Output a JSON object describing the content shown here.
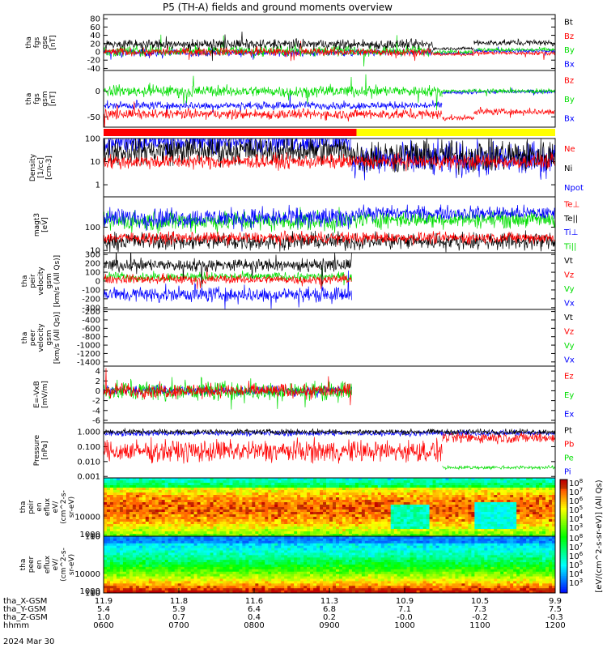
{
  "title": "P5 (TH-A) fields and ground moments overview",
  "date_label": "2024 Mar 30",
  "colors": {
    "black": "#000000",
    "red": "#ff0000",
    "green": "#00dd00",
    "blue": "#0000ff",
    "flag_red": "#ff0000",
    "flag_yellow": "#ffff00"
  },
  "chart_data": [
    {
      "id": "fgs_gse",
      "type": "line",
      "ylabel": [
        "tha",
        "fgs",
        "gse",
        "[nT]"
      ],
      "yticks": [
        "80",
        "60",
        "40",
        "20",
        "0",
        "-20",
        "-40"
      ],
      "ylim": [
        -45,
        90
      ],
      "series": [
        {
          "name": "Bt",
          "color": "black",
          "segments": [
            [
              0,
              0.73,
              18,
              10
            ],
            [
              0.73,
              0.82,
              8,
              3
            ],
            [
              0.82,
              1.0,
              22,
              6
            ]
          ]
        },
        {
          "name": "Bz",
          "color": "red",
          "segments": [
            [
              0,
              0.73,
              0,
              8
            ],
            [
              0.73,
              0.82,
              -6,
              3
            ],
            [
              0.82,
              1.0,
              -3,
              4
            ]
          ]
        },
        {
          "name": "By",
          "color": "green",
          "segments": [
            [
              0,
              0.73,
              2,
              10
            ],
            [
              0.73,
              0.82,
              0,
              4
            ],
            [
              0.82,
              1.0,
              5,
              4
            ]
          ]
        },
        {
          "name": "Bx",
          "color": "blue",
          "segments": [
            [
              0,
              0.73,
              -2,
              7
            ],
            [
              0.73,
              0.82,
              -4,
              3
            ],
            [
              0.82,
              1.0,
              2,
              4
            ]
          ]
        }
      ]
    },
    {
      "id": "fgs_gsm",
      "type": "line",
      "ylabel": [
        "tha",
        "fgs",
        "gsm",
        "[nT]"
      ],
      "yticks": [
        "0",
        "-50"
      ],
      "ylim": [
        -70,
        40
      ],
      "series": [
        {
          "name": "Bz",
          "color": "red",
          "segments": [
            [
              0,
              0.75,
              -45,
              8
            ],
            [
              0.75,
              0.82,
              -52,
              4
            ],
            [
              0.82,
              1.0,
              -40,
              5
            ]
          ]
        },
        {
          "name": "By",
          "color": "green",
          "segments": [
            [
              0,
              0.75,
              0,
              9
            ],
            [
              0.75,
              0.82,
              0,
              3
            ],
            [
              0.82,
              1.0,
              0,
              4
            ]
          ]
        },
        {
          "name": "Bx",
          "color": "blue",
          "segments": [
            [
              0,
              0.75,
              -28,
              6
            ],
            [
              0.75,
              0.82,
              -3,
              3
            ],
            [
              0.82,
              1.0,
              -1,
              3
            ]
          ]
        }
      ]
    },
    {
      "id": "density",
      "type": "line",
      "log": true,
      "ylabel": [
        "Density",
        "[1/cc]",
        "[cm-3]"
      ],
      "yticks": [
        "100",
        "10",
        "1"
      ],
      "ylim": [
        0.3,
        100
      ],
      "series": [
        {
          "name": "Ne",
          "color": "red",
          "segments": [
            [
              0,
              1.0,
              10,
              0.25
            ]
          ]
        },
        {
          "name": "Ni",
          "color": "black",
          "segments": [
            [
              0,
              0.55,
              30,
              0.5
            ],
            [
              0.55,
              1.0,
              18,
              0.6
            ]
          ]
        },
        {
          "name": "Npot",
          "color": "blue",
          "segments": [
            [
              0,
              0.55,
              70,
              0.4
            ],
            [
              0.55,
              1.0,
              12,
              0.6
            ]
          ]
        }
      ]
    },
    {
      "id": "moms",
      "type": "line",
      "log": true,
      "ylabel": [
        "magt3",
        "[eV]"
      ],
      "yticks": [
        "100",
        "10"
      ],
      "ylim": [
        8,
        2000
      ],
      "series": [
        {
          "name": "Te⊥",
          "color": "red",
          "segments": [
            [
              0,
              1.0,
              35,
              0.2
            ]
          ]
        },
        {
          "name": "Te||",
          "color": "black",
          "segments": [
            [
              0,
              1.0,
              25,
              0.3
            ]
          ]
        },
        {
          "name": "Ti⊥",
          "color": "blue",
          "segments": [
            [
              0,
              0.55,
              250,
              0.35
            ],
            [
              0.55,
              1.0,
              400,
              0.25
            ]
          ]
        },
        {
          "name": "Ti||",
          "color": "green",
          "segments": [
            [
              0,
              0.55,
              180,
              0.35
            ],
            [
              0.55,
              1.0,
              220,
              0.3
            ]
          ]
        }
      ]
    },
    {
      "id": "peir_vel",
      "type": "line",
      "ylabel": [
        "tha",
        "peir",
        "velocity",
        "gsm",
        "[km/s (All Qs)]"
      ],
      "yticks": [
        "300",
        "200",
        "100",
        "0",
        "-100",
        "-200",
        "-300"
      ],
      "ylim": [
        -320,
        320
      ],
      "data_end": 0.55,
      "series": [
        {
          "name": "Vt",
          "color": "black",
          "segments": [
            [
              0,
              0.55,
              180,
              60
            ]
          ]
        },
        {
          "name": "Vz",
          "color": "red",
          "segments": [
            [
              0,
              0.55,
              20,
              40
            ]
          ]
        },
        {
          "name": "Vy",
          "color": "green",
          "segments": [
            [
              0,
              0.55,
              50,
              40
            ]
          ]
        },
        {
          "name": "Vx",
          "color": "blue",
          "segments": [
            [
              0,
              0.55,
              -150,
              70
            ]
          ]
        }
      ]
    },
    {
      "id": "peer_vel",
      "type": "line",
      "ylabel": [
        "tha",
        "peer",
        "velocity",
        "gsm",
        "[km/s (All Qs)]"
      ],
      "yticks": [
        "-200",
        "-400",
        "-600",
        "-800",
        "-1000",
        "-1200",
        "-1400"
      ],
      "ylim": [
        -1500,
        -150
      ],
      "series": [
        {
          "name": "Vt",
          "color": "black",
          "segments": []
        },
        {
          "name": "Vz",
          "color": "red",
          "segments": []
        },
        {
          "name": "Vy",
          "color": "green",
          "segments": []
        },
        {
          "name": "Vx",
          "color": "blue",
          "segments": []
        }
      ]
    },
    {
      "id": "efield",
      "type": "line",
      "ylabel": [
        "E=-VxB",
        "[mV/m]"
      ],
      "yticks": [
        "4",
        "2",
        "0",
        "-2",
        "-4",
        "-6"
      ],
      "ylim": [
        -6.5,
        5
      ],
      "data_end": 0.55,
      "series": [
        {
          "name": "Ez",
          "color": "red",
          "segments": [
            [
              0,
              0.55,
              0,
              1.2
            ]
          ]
        },
        {
          "name": "Ey",
          "color": "green",
          "segments": [
            [
              0,
              0.55,
              0,
              1.6
            ]
          ]
        },
        {
          "name": "Ex",
          "color": "blue",
          "segments": [
            [
              0,
              0.55,
              0,
              0.8
            ]
          ]
        }
      ]
    },
    {
      "id": "pressure",
      "type": "line",
      "log": true,
      "ylabel": [
        "Pressure",
        "[nPa]"
      ],
      "yticks": [
        "1.000",
        "0.100",
        "0.010",
        "0.001"
      ],
      "ylim": [
        0.0008,
        4
      ],
      "series": [
        {
          "name": "Pt",
          "color": "black",
          "segments": [
            [
              0,
              1.0,
              1.0,
              0.15
            ]
          ]
        },
        {
          "name": "Pb",
          "color": "red",
          "segments": [
            [
              0,
              0.75,
              0.05,
              0.6
            ],
            [
              0.75,
              1.0,
              0.4,
              0.3
            ]
          ]
        },
        {
          "name": "Pe",
          "color": "green",
          "segments": [
            [
              0.75,
              1.0,
              0.004,
              0.1
            ]
          ]
        },
        {
          "name": "Pi",
          "color": "blue",
          "segments": [
            [
              0,
              1.0,
              0.8,
              0.15
            ]
          ]
        }
      ]
    },
    {
      "id": "peir_spec",
      "type": "heatmap",
      "ylabel": [
        "tha",
        "peir",
        "en",
        "eflux",
        "eV/",
        "(cm^2-s-",
        "sr-eV)"
      ],
      "yticks": [
        "10000",
        "1000",
        "100",
        "10"
      ],
      "ylim": [
        7,
        30000
      ]
    },
    {
      "id": "peer_spec",
      "type": "heatmap",
      "ylabel": [
        "tha",
        "peer",
        "en",
        "eflux",
        "eV/",
        "(cm^2-s-",
        "sr-eV)"
      ],
      "yticks": [
        "10000",
        "1000",
        "100",
        "10"
      ],
      "ylim": [
        7,
        30000
      ]
    }
  ],
  "colorbar": {
    "label": "[eV/(cm^2-s-sr-eV)] (All Qs)",
    "ticks": [
      "10^8",
      "10^7",
      "10^6",
      "10^5",
      "10^4",
      "10^3"
    ],
    "ticks2": [
      "10^8",
      "10^7",
      "10^6",
      "10^5",
      "10^4",
      "10^3"
    ]
  },
  "x_axis": {
    "rows": [
      {
        "name": "tha_X-GSM",
        "values": [
          "11.9",
          "11.8",
          "11.6",
          "11.3",
          "10.9",
          "10.5",
          "9.9"
        ]
      },
      {
        "name": "tha_Y-GSM",
        "values": [
          "5.4",
          "5.9",
          "6.4",
          "6.8",
          "7.1",
          "7.3",
          "7.5"
        ]
      },
      {
        "name": "tha_Z-GSM",
        "values": [
          "1.0",
          "0.7",
          "0.4",
          "0.2",
          "-0.0",
          "-0.2",
          "-0.3"
        ]
      },
      {
        "name": "hhmm",
        "values": [
          "0600",
          "0700",
          "0800",
          "0900",
          "1000",
          "1100",
          "1200"
        ]
      }
    ]
  }
}
